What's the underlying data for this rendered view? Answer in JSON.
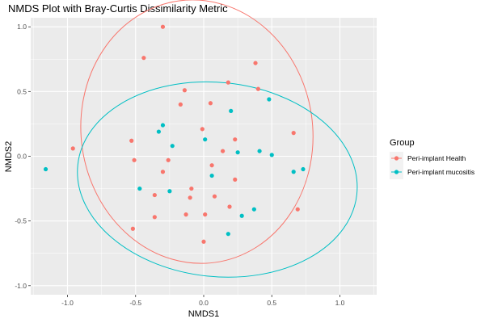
{
  "chart_data": {
    "type": "scatter",
    "title": "NMDS Plot with Bray-Curtis Dissimilarity Metric",
    "xlabel": "NMDS1",
    "ylabel": "NMDS2",
    "xlim": [
      -1.27,
      1.27
    ],
    "ylim": [
      -1.07,
      1.07
    ],
    "x_ticks": [
      -1.0,
      -0.5,
      0.0,
      0.5,
      1.0
    ],
    "x_tick_labels": [
      "-1.0",
      "-0.5",
      "0.0",
      "0.5",
      "1.0"
    ],
    "y_ticks": [
      -1.0,
      -0.5,
      0.0,
      0.5,
      1.0
    ],
    "y_tick_labels": [
      "-1.0",
      "-0.5",
      "0.0",
      "0.5",
      "1.0"
    ],
    "grid": true,
    "background": "#EBEBEB",
    "legend": {
      "title": "Group",
      "placement": "right"
    },
    "series": [
      {
        "name": "Peri-implant Health",
        "color": "#F8766D",
        "points": [
          [
            -0.3,
            1.0
          ],
          [
            -0.44,
            0.76
          ],
          [
            0.38,
            0.72
          ],
          [
            0.18,
            0.57
          ],
          [
            -0.14,
            0.51
          ],
          [
            0.4,
            0.52
          ],
          [
            -0.17,
            0.4
          ],
          [
            0.05,
            0.41
          ],
          [
            -0.01,
            0.21
          ],
          [
            -0.53,
            0.12
          ],
          [
            0.23,
            0.13
          ],
          [
            0.66,
            0.18
          ],
          [
            -0.96,
            0.06
          ],
          [
            0.14,
            0.04
          ],
          [
            -0.51,
            -0.03
          ],
          [
            -0.26,
            -0.03
          ],
          [
            0.06,
            -0.07
          ],
          [
            -0.3,
            -0.12
          ],
          [
            0.23,
            -0.18
          ],
          [
            -0.09,
            -0.25
          ],
          [
            -0.1,
            -0.32
          ],
          [
            0.08,
            -0.31
          ],
          [
            -0.36,
            -0.3
          ],
          [
            0.19,
            -0.39
          ],
          [
            0.69,
            -0.41
          ],
          [
            -0.13,
            -0.45
          ],
          [
            0.01,
            -0.45
          ],
          [
            -0.36,
            -0.47
          ],
          [
            -0.52,
            -0.56
          ],
          [
            0.0,
            -0.66
          ]
        ]
      },
      {
        "name": "Peri-implant mucositis",
        "color": "#00BFC4",
        "points": [
          [
            0.48,
            0.44
          ],
          [
            0.2,
            0.35
          ],
          [
            -0.3,
            0.24
          ],
          [
            -0.33,
            0.19
          ],
          [
            0.01,
            0.13
          ],
          [
            -0.23,
            0.08
          ],
          [
            0.41,
            0.04
          ],
          [
            0.25,
            0.03
          ],
          [
            0.5,
            0.01
          ],
          [
            -1.16,
            -0.1
          ],
          [
            0.73,
            -0.1
          ],
          [
            0.66,
            -0.12
          ],
          [
            0.06,
            -0.15
          ],
          [
            -0.47,
            -0.25
          ],
          [
            -0.25,
            -0.27
          ],
          [
            0.37,
            -0.41
          ],
          [
            0.28,
            -0.46
          ],
          [
            0.18,
            -0.6
          ]
        ]
      }
    ],
    "ellipses": [
      {
        "series": "Peri-implant Health",
        "color": "#F8766D",
        "cx": -0.05,
        "cy": 0.19,
        "rx": 0.85,
        "ry": 1.02,
        "angle_deg": -8
      },
      {
        "series": "Peri-implant mucositis",
        "color": "#00BFC4",
        "cx": 0.1,
        "cy": -0.18,
        "rx": 1.03,
        "ry": 0.75,
        "angle_deg": 6
      }
    ]
  }
}
